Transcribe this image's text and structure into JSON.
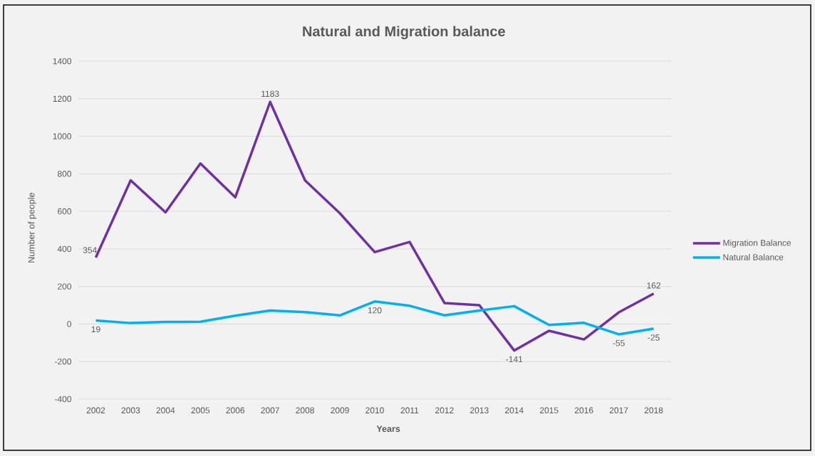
{
  "chart_data": {
    "type": "line",
    "title": "Natural and Migration balance",
    "xlabel": "Years",
    "ylabel": "Number of people",
    "categories": [
      "2002",
      "2003",
      "2004",
      "2005",
      "2006",
      "2007",
      "2008",
      "2009",
      "2010",
      "2011",
      "2012",
      "2013",
      "2014",
      "2015",
      "2016",
      "2017",
      "2018"
    ],
    "series": [
      {
        "name": "Migration Balance",
        "color": "#7030a0",
        "values": [
          354,
          765,
          595,
          855,
          675,
          1183,
          765,
          590,
          383,
          437,
          112,
          100,
          -141,
          -36,
          -82,
          62,
          162
        ],
        "value_labels": [
          "354",
          null,
          null,
          null,
          null,
          "1183",
          null,
          null,
          null,
          null,
          null,
          null,
          "-141",
          null,
          null,
          null,
          "162"
        ]
      },
      {
        "name": "Natural Balance",
        "color": "#00b0f0",
        "values": [
          19,
          5,
          11,
          12,
          44,
          72,
          63,
          46,
          120,
          97,
          46,
          72,
          95,
          -5,
          6,
          -55,
          -25
        ],
        "value_labels": [
          "19",
          null,
          null,
          null,
          null,
          null,
          null,
          null,
          "120",
          null,
          null,
          null,
          null,
          null,
          null,
          "-55",
          "-25"
        ]
      }
    ],
    "ylim": [
      -400,
      1400
    ],
    "yticks": [
      -400,
      -200,
      0,
      200,
      400,
      600,
      800,
      1000,
      1200,
      1400
    ],
    "grid": "y",
    "legend": "right"
  }
}
